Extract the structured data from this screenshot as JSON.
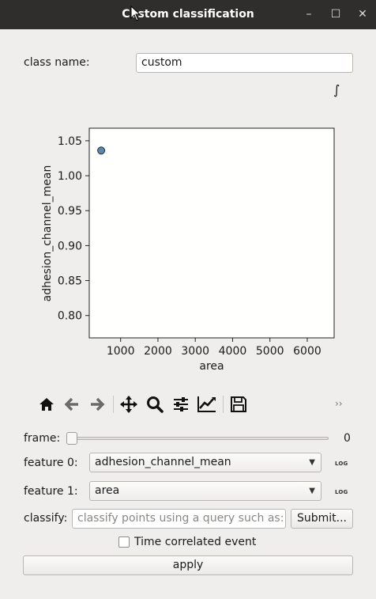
{
  "window": {
    "title": "Custom classification",
    "minimize_glyph": "–",
    "maximize_glyph": "☐",
    "close_glyph": "✕"
  },
  "class_name": {
    "label": "class name:",
    "value": "custom"
  },
  "integral_glyph": "∫",
  "chart_data": {
    "type": "scatter",
    "xlabel": "area",
    "ylabel": "adhesion_channel_mean",
    "xlim": [
      160,
      6720
    ],
    "ylim": [
      0.768,
      1.068
    ],
    "x_ticks": [
      1000,
      2000,
      3000,
      4000,
      5000,
      6000
    ],
    "y_ticks": [
      0.8,
      0.85,
      0.9,
      0.95,
      1.0,
      1.05
    ],
    "x_tick_labels": [
      "1000",
      "2000",
      "3000",
      "4000",
      "5000",
      "6000"
    ],
    "y_tick_labels": [
      "0.80",
      "0.85",
      "0.90",
      "0.95",
      "1.00",
      "1.05"
    ],
    "points": [
      {
        "x": 480,
        "y": 1.036
      }
    ],
    "point_color": "#5b87ad",
    "grid": false
  },
  "toolbar": {
    "icons": [
      "home-icon",
      "back-arrow-icon",
      "forward-arrow-icon",
      "pan-icon",
      "zoom-icon",
      "configure-subplots-icon",
      "edit-axis-icon",
      "save-icon"
    ],
    "more_glyph": "››"
  },
  "frame": {
    "label": "frame:",
    "value": "0",
    "level": 0
  },
  "feature0": {
    "label": "feature 0:",
    "value": "adhesion_channel_mean",
    "log_label": "LOG"
  },
  "feature1": {
    "label": "feature 1:",
    "value": "area",
    "log_label": "LOG"
  },
  "classify": {
    "label": "classify:",
    "placeholder": "classify points using a query such as:...",
    "submit_label": "Submit..."
  },
  "time_correlated": {
    "label": "Time correlated event",
    "checked": false
  },
  "apply_label": "apply",
  "colors": {
    "titlebar": "#2f2e2c",
    "background": "#efeeed",
    "plot_bg": "#fffffd"
  }
}
